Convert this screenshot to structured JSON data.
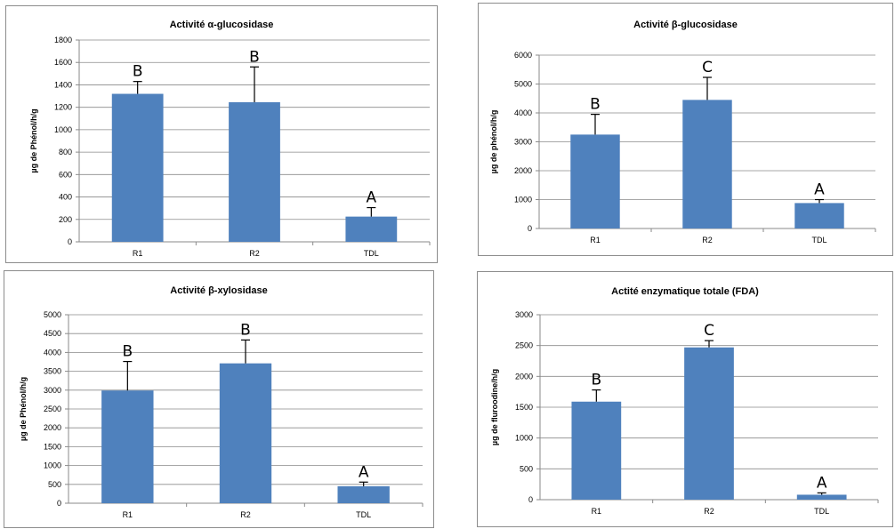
{
  "chart_data": [
    {
      "type": "bar",
      "title": "Activité α-glucosidase",
      "ylabel": "µg de Phénol/h/g",
      "categories": [
        "R1",
        "R2",
        "TDL"
      ],
      "values": [
        1320,
        1245,
        225
      ],
      "error": [
        110,
        315,
        80
      ],
      "letters": [
        "B",
        "B",
        "A"
      ],
      "ylim": [
        0,
        1800
      ],
      "ytick_step": 200,
      "grid": true,
      "color": "#4f81bd"
    },
    {
      "type": "bar",
      "title": "Activité β-glucosidase",
      "ylabel": "µg de phénol/h/g",
      "categories": [
        "R1",
        "R2",
        "TDL"
      ],
      "values": [
        3250,
        4450,
        880
      ],
      "error": [
        700,
        780,
        120
      ],
      "letters": [
        "B",
        "C",
        "A"
      ],
      "ylim": [
        0,
        6000
      ],
      "ytick_step": 1000,
      "grid": true,
      "color": "#4f81bd"
    },
    {
      "type": "bar",
      "title": "Activité β-xylosidase",
      "ylabel": "µg de Phénol/h/g",
      "categories": [
        "R1",
        "R2",
        "TDL"
      ],
      "values": [
        2990,
        3710,
        450
      ],
      "error": [
        770,
        620,
        110
      ],
      "letters": [
        "B",
        "B",
        "A"
      ],
      "ylim": [
        0,
        5000
      ],
      "ytick_step": 500,
      "grid": true,
      "color": "#4f81bd"
    },
    {
      "type": "bar",
      "title": "Actité enzymatique totale (FDA)",
      "ylabel": "µg de fluroodine/h/g",
      "categories": [
        "R1",
        "R2",
        "TDL"
      ],
      "values": [
        1590,
        2470,
        80
      ],
      "error": [
        190,
        110,
        30
      ],
      "letters": [
        "B",
        "C",
        "A"
      ],
      "ylim": [
        0,
        3000
      ],
      "ytick_step": 500,
      "grid": true,
      "color": "#4f81bd"
    }
  ]
}
